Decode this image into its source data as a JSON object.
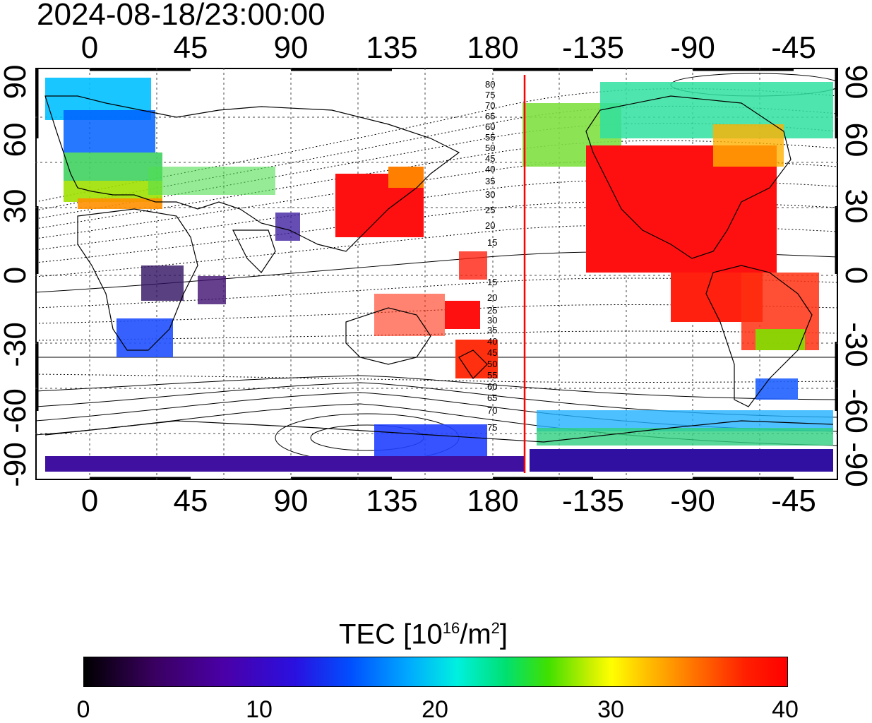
{
  "timestamp": "2024-08-18/23:00:00",
  "axes": {
    "top_ticks": [
      "0",
      "45",
      "90",
      "135",
      "180",
      "-135",
      "-90",
      "-45"
    ],
    "bottom_ticks": [
      "0",
      "45",
      "90",
      "135",
      "180",
      "-135",
      "-90",
      "-45"
    ],
    "left_ticks": [
      "90",
      "60",
      "30",
      "0",
      "-30",
      "-60",
      "-90"
    ],
    "right_ticks": [
      "90",
      "60",
      "30",
      "0",
      "-30",
      "-60",
      "-90"
    ]
  },
  "contour_labels_upper": [
    "80",
    "75",
    "70",
    "65",
    "60",
    "55",
    "50",
    "45",
    "40",
    "35",
    "30",
    "25",
    "20",
    "15"
  ],
  "contour_labels_lower": [
    "15",
    "20",
    "25",
    "30",
    "35",
    "40",
    "45",
    "50",
    "55",
    "60",
    "65",
    "70",
    "75"
  ],
  "colorbar": {
    "title_text": "TEC  [10",
    "title_sup1": "16",
    "title_mid": "/m",
    "title_sup2": "2",
    "title_end": "]",
    "min": 0,
    "max": 40,
    "labels": [
      "0",
      "10",
      "20",
      "30",
      "40"
    ]
  },
  "colors": {
    "terminator_line": "#ff0000",
    "high": "#ff0000",
    "low": "#3a0080"
  }
}
